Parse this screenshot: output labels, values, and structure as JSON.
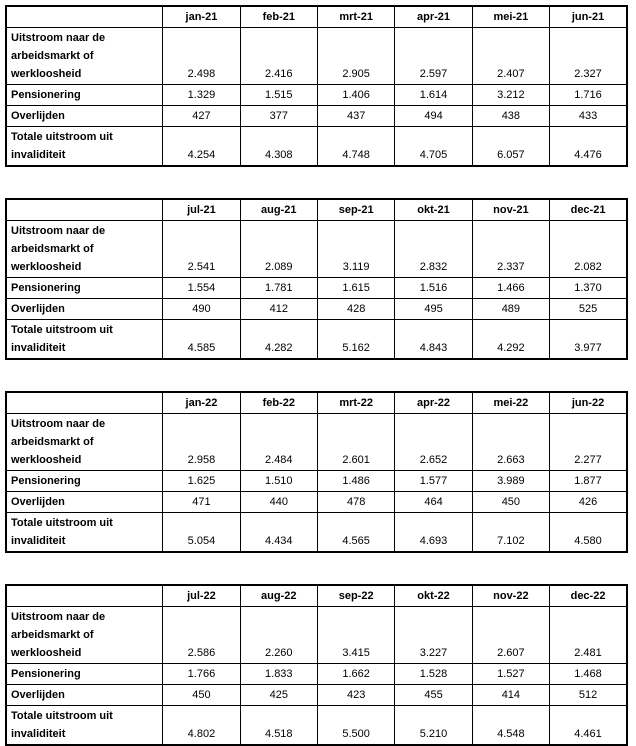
{
  "row_labels": {
    "outflow": "Uitstroom naar de\narbeidsmarkt of\nwerkloosheid",
    "retirement": "Pensionering",
    "death": "Overlijden",
    "total": "Totale uitstroom uit\ninvaliditeit"
  },
  "tables": [
    {
      "months": [
        "jan-21",
        "feb-21",
        "mrt-21",
        "apr-21",
        "mei-21",
        "jun-21"
      ],
      "outflow": [
        "2.498",
        "2.416",
        "2.905",
        "2.597",
        "2.407",
        "2.327"
      ],
      "retirement": [
        "1.329",
        "1.515",
        "1.406",
        "1.614",
        "3.212",
        "1.716"
      ],
      "death": [
        "427",
        "377",
        "437",
        "494",
        "438",
        "433"
      ],
      "total": [
        "4.254",
        "4.308",
        "4.748",
        "4.705",
        "6.057",
        "4.476"
      ]
    },
    {
      "months": [
        "jul-21",
        "aug-21",
        "sep-21",
        "okt-21",
        "nov-21",
        "dec-21"
      ],
      "outflow": [
        "2.541",
        "2.089",
        "3.119",
        "2.832",
        "2.337",
        "2.082"
      ],
      "retirement": [
        "1.554",
        "1.781",
        "1.615",
        "1.516",
        "1.466",
        "1.370"
      ],
      "death": [
        "490",
        "412",
        "428",
        "495",
        "489",
        "525"
      ],
      "total": [
        "4.585",
        "4.282",
        "5.162",
        "4.843",
        "4.292",
        "3.977"
      ]
    },
    {
      "months": [
        "jan-22",
        "feb-22",
        "mrt-22",
        "apr-22",
        "mei-22",
        "jun-22"
      ],
      "outflow": [
        "2.958",
        "2.484",
        "2.601",
        "2.652",
        "2.663",
        "2.277"
      ],
      "retirement": [
        "1.625",
        "1.510",
        "1.486",
        "1.577",
        "3.989",
        "1.877"
      ],
      "death": [
        "471",
        "440",
        "478",
        "464",
        "450",
        "426"
      ],
      "total": [
        "5.054",
        "4.434",
        "4.565",
        "4.693",
        "7.102",
        "4.580"
      ]
    },
    {
      "months": [
        "jul-22",
        "aug-22",
        "sep-22",
        "okt-22",
        "nov-22",
        "dec-22"
      ],
      "outflow": [
        "2.586",
        "2.260",
        "3.415",
        "3.227",
        "2.607",
        "2.481"
      ],
      "retirement": [
        "1.766",
        "1.833",
        "1.662",
        "1.528",
        "1.527",
        "1.468"
      ],
      "death": [
        "450",
        "425",
        "423",
        "455",
        "414",
        "512"
      ],
      "total": [
        "4.802",
        "4.518",
        "5.500",
        "5.210",
        "4.548",
        "4.461"
      ]
    }
  ]
}
